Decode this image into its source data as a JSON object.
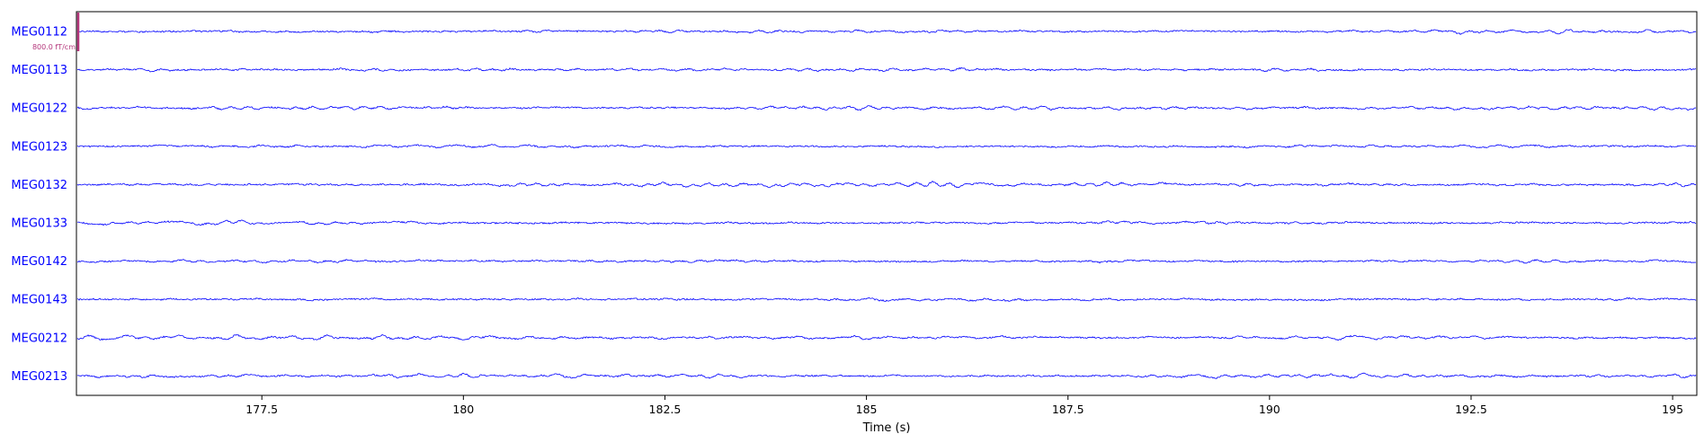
{
  "chart_data": {
    "type": "line",
    "title": "",
    "xlabel": "Time (s)",
    "ylabel": "",
    "xlim": [
      175.2,
      195.3
    ],
    "xticks": [
      177.5,
      180,
      182.5,
      185,
      187.5,
      190,
      192.5,
      195
    ],
    "xtick_labels": [
      "177.5",
      "180",
      "182.5",
      "185",
      "187.5",
      "190",
      "192.5",
      "195"
    ],
    "grid": false,
    "trace_color": "#0000ff",
    "scale_bar": {
      "label": "800.0 fT/cm",
      "color": "#b3357a"
    },
    "channels": [
      {
        "name": "MEG0112"
      },
      {
        "name": "MEG0113"
      },
      {
        "name": "MEG0122"
      },
      {
        "name": "MEG0123"
      },
      {
        "name": "MEG0132"
      },
      {
        "name": "MEG0133"
      },
      {
        "name": "MEG0142"
      },
      {
        "name": "MEG0143"
      },
      {
        "name": "MEG0212"
      },
      {
        "name": "MEG0213"
      }
    ]
  }
}
